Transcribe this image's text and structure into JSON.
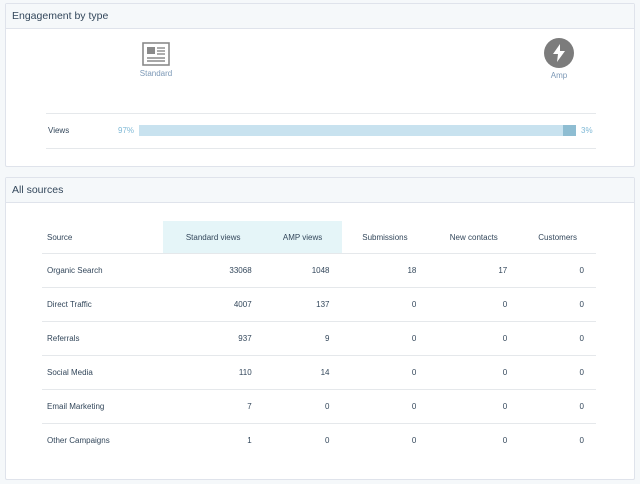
{
  "engagement": {
    "title": "Engagement by type",
    "standard_label": "Standard",
    "amp_label": "Amp",
    "views_label": "Views",
    "standard_pct": "97%",
    "amp_pct": "3%",
    "standard_fraction": 0.97,
    "amp_fraction": 0.03,
    "icons": {
      "standard": "newspaper-icon",
      "amp": "lightning-bolt-icon"
    }
  },
  "sources": {
    "title": "All sources",
    "columns": [
      "Source",
      "Standard views",
      "AMP views",
      "Submissions",
      "New contacts",
      "Customers"
    ],
    "rows": [
      [
        "Organic Search",
        "33068",
        "1048",
        "18",
        "17",
        "0"
      ],
      [
        "Direct Traffic",
        "4007",
        "137",
        "0",
        "0",
        "0"
      ],
      [
        "Referrals",
        "937",
        "9",
        "0",
        "0",
        "0"
      ],
      [
        "Social Media",
        "110",
        "14",
        "0",
        "0",
        "0"
      ],
      [
        "Email Marketing",
        "7",
        "0",
        "0",
        "0",
        "0"
      ],
      [
        "Other Campaigns",
        "1",
        "0",
        "0",
        "0",
        "0"
      ]
    ]
  },
  "colors": {
    "highlight_header": "#e5f5f8",
    "bar_standard": "#c8e2ef",
    "bar_amp": "#8ebdd2",
    "percent_text": "#7fb9d6",
    "amp_icon_bg": "#7c7c7c"
  }
}
